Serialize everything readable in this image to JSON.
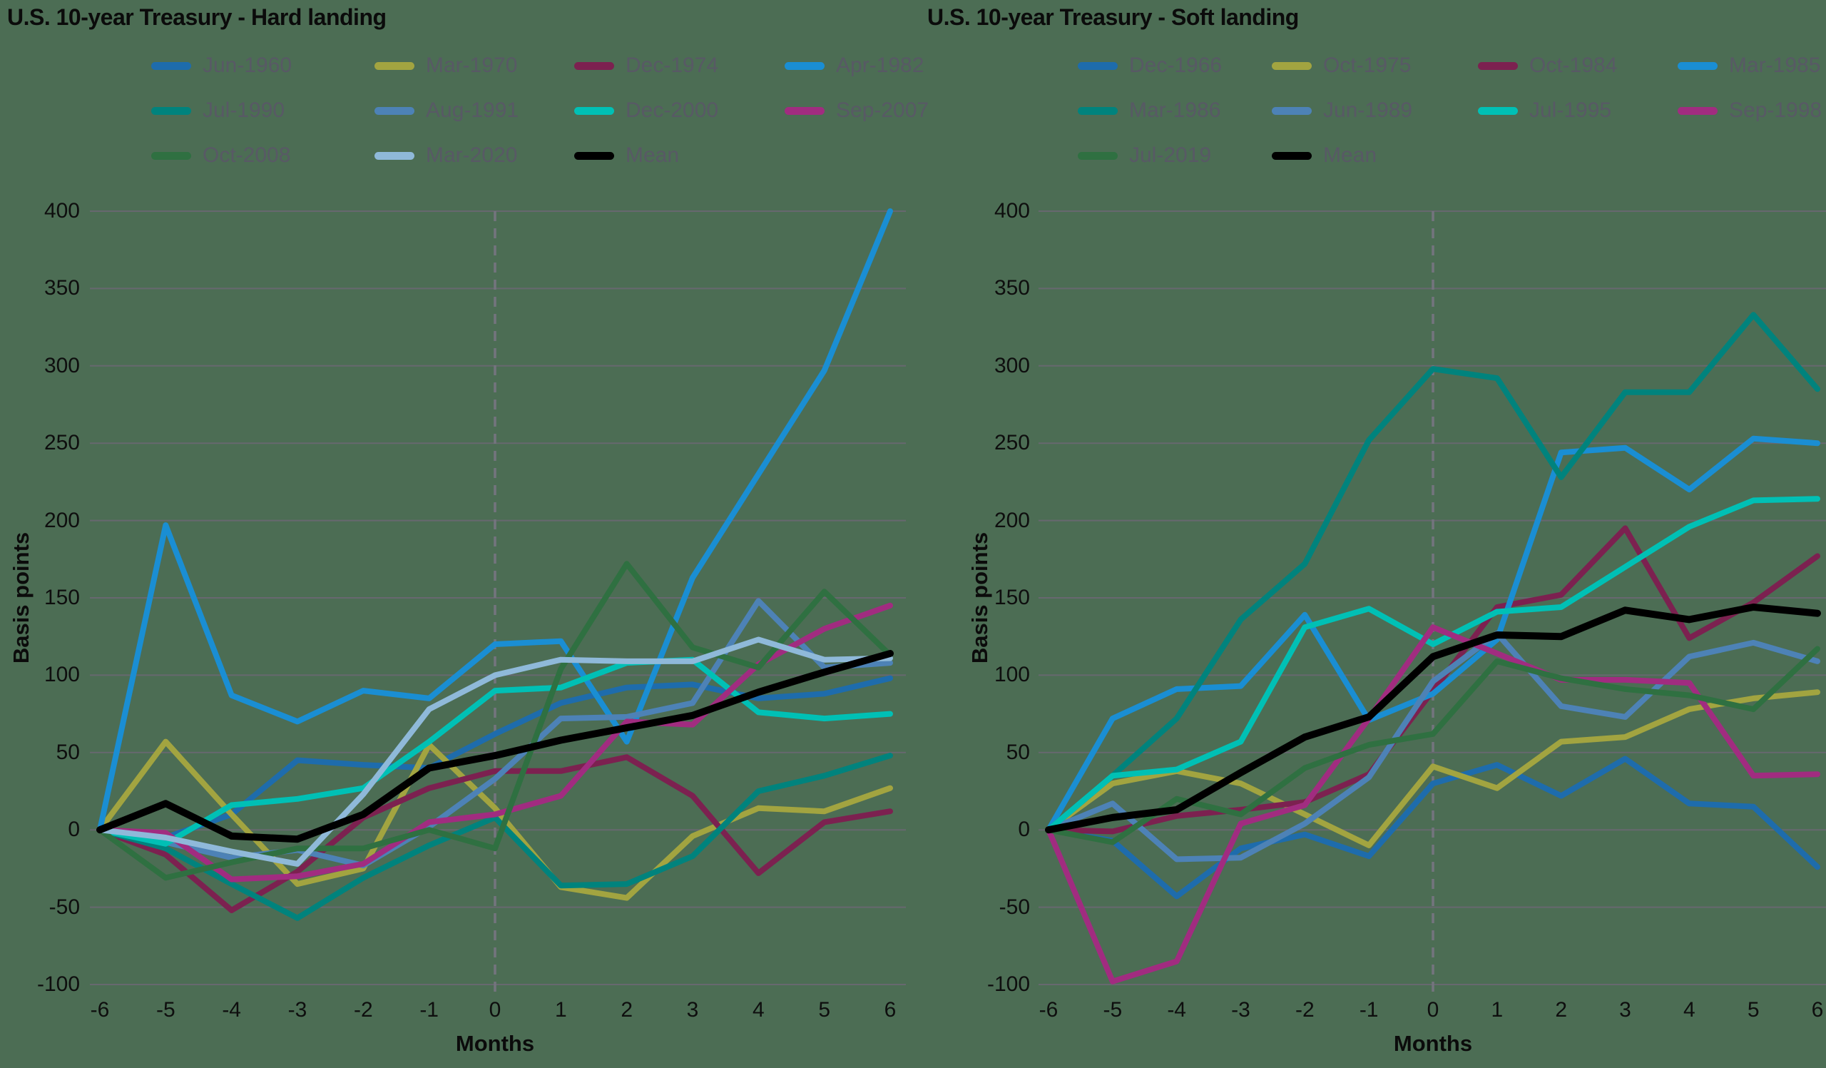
{
  "page": {
    "background": "#4c6d54",
    "grid_color": "#67686f",
    "dashed_line_color": "#74747e",
    "legend_text_color": "#585965",
    "axis_text_color": "#0e0e0e"
  },
  "chart_data": [
    {
      "type": "line",
      "title": "U.S. 10-year Treasury - Hard landing",
      "xlabel": "Months",
      "ylabel": "Basis points",
      "x": [
        -6,
        -5,
        -4,
        -3,
        -2,
        -1,
        0,
        1,
        2,
        3,
        4,
        5,
        6
      ],
      "yticks": [
        400,
        350,
        300,
        250,
        200,
        150,
        100,
        50,
        0,
        -50,
        -100
      ],
      "ylim": [
        -100,
        400
      ],
      "grid": true,
      "legend_position": "top",
      "event_line_x": 0,
      "series": [
        {
          "name": "Jun-1960",
          "color": "#1e6cac",
          "values": [
            0,
            -5,
            10,
            45,
            42,
            40,
            62,
            82,
            92,
            94,
            85,
            88,
            98
          ]
        },
        {
          "name": "Mar-1970",
          "color": "#a2a440",
          "values": [
            0,
            57,
            10,
            -35,
            -25,
            55,
            14,
            -37,
            -44,
            -4,
            14,
            12,
            27
          ]
        },
        {
          "name": "Dec-1974",
          "color": "#7c2150",
          "values": [
            0,
            -16,
            -52,
            -27,
            8,
            27,
            38,
            38,
            47,
            22,
            -28,
            5,
            12
          ]
        },
        {
          "name": "Apr-1982",
          "color": "#1a8ed3",
          "values": [
            0,
            197,
            87,
            70,
            90,
            85,
            120,
            122,
            57,
            163,
            230,
            297,
            400
          ]
        },
        {
          "name": "Jul-1990",
          "color": "#00837d",
          "values": [
            0,
            -12,
            -35,
            -57,
            -31,
            -10,
            8,
            -36,
            -35,
            -17,
            25,
            35,
            48
          ]
        },
        {
          "name": "Aug-1991",
          "color": "#4d82b6",
          "values": [
            0,
            -8,
            -18,
            -13,
            -23,
            2,
            33,
            72,
            73,
            82,
            148,
            105,
            108
          ]
        },
        {
          "name": "Dec-2000",
          "color": "#00c0b5",
          "values": [
            0,
            -9,
            16,
            20,
            27,
            57,
            90,
            92,
            108,
            110,
            76,
            72,
            75
          ]
        },
        {
          "name": "Sep-2007",
          "color": "#a12c80",
          "values": [
            0,
            -2,
            -32,
            -30,
            -22,
            5,
            10,
            22,
            70,
            68,
            107,
            130,
            145
          ]
        },
        {
          "name": "Oct-2008",
          "color": "#2f7041",
          "values": [
            0,
            -31,
            -21,
            -12,
            -12,
            0,
            -12,
            104,
            172,
            118,
            105,
            154,
            113
          ]
        },
        {
          "name": "Mar-2020",
          "color": "#8fb9d9",
          "values": [
            0,
            -5,
            -14,
            -22,
            23,
            78,
            100,
            110,
            109,
            109,
            123,
            110,
            111
          ]
        },
        {
          "name": "Mean",
          "color": "#000000",
          "values": [
            0,
            17,
            -4,
            -6,
            10,
            40,
            48,
            58,
            66,
            74,
            89,
            102,
            114
          ]
        }
      ]
    },
    {
      "type": "line",
      "title": "U.S. 10-year Treasury - Soft landing",
      "xlabel": "Months",
      "ylabel": "Basis points",
      "x": [
        -6,
        -5,
        -4,
        -3,
        -2,
        -1,
        0,
        1,
        2,
        3,
        4,
        5,
        6
      ],
      "yticks": [
        400,
        350,
        300,
        250,
        200,
        150,
        100,
        50,
        0,
        -50,
        -100
      ],
      "ylim": [
        -100,
        400
      ],
      "grid": true,
      "legend_position": "top",
      "event_line_x": 0,
      "series": [
        {
          "name": "Dec-1966",
          "color": "#1e6cac",
          "values": [
            0,
            -7,
            -43,
            -12,
            -3,
            -17,
            30,
            42,
            22,
            46,
            17,
            15,
            -24
          ]
        },
        {
          "name": "Oct-1975",
          "color": "#a2a440",
          "values": [
            0,
            30,
            38,
            30,
            10,
            -10,
            41,
            27,
            57,
            60,
            78,
            85,
            89
          ]
        },
        {
          "name": "Oct-1984",
          "color": "#7c2150",
          "values": [
            0,
            -1,
            9,
            13,
            18,
            36,
            90,
            144,
            152,
            195,
            124,
            147,
            177
          ]
        },
        {
          "name": "Mar-1985",
          "color": "#1a8ed3",
          "values": [
            0,
            72,
            91,
            93,
            139,
            71,
            88,
            123,
            244,
            247,
            220,
            253,
            250
          ]
        },
        {
          "name": "Mar-1986",
          "color": "#00837d",
          "values": [
            0,
            35,
            72,
            136,
            172,
            252,
            298,
            292,
            228,
            283,
            283,
            333,
            285
          ]
        },
        {
          "name": "Jun-1989",
          "color": "#4d82b6",
          "values": [
            0,
            17,
            -19,
            -18,
            4,
            34,
            96,
            127,
            80,
            73,
            112,
            121,
            109
          ]
        },
        {
          "name": "Jul-1995",
          "color": "#00c0b5",
          "values": [
            0,
            35,
            39,
            57,
            131,
            143,
            120,
            141,
            144,
            170,
            196,
            213,
            214
          ]
        },
        {
          "name": "Sep-1998",
          "color": "#a12c80",
          "values": [
            0,
            -98,
            -85,
            4,
            16,
            72,
            131,
            114,
            97,
            97,
            95,
            35,
            36
          ]
        },
        {
          "name": "Jul-2019",
          "color": "#2f7041",
          "values": [
            0,
            -8,
            20,
            10,
            40,
            55,
            62,
            109,
            98,
            91,
            87,
            78,
            117
          ]
        },
        {
          "name": "Mean",
          "color": "#000000",
          "values": [
            0,
            8,
            13,
            37,
            60,
            73,
            112,
            126,
            125,
            142,
            136,
            144,
            140
          ]
        }
      ]
    }
  ]
}
